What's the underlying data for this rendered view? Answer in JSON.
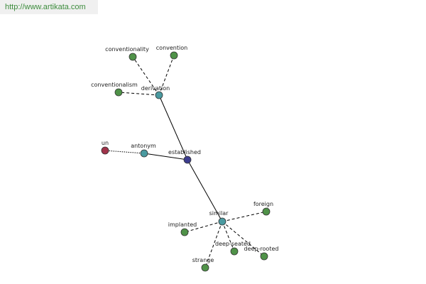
{
  "header": {
    "url": "http://www.artikata.com"
  },
  "nodes": [
    {
      "label": "established"
    },
    {
      "label": "derivation"
    },
    {
      "label": "antonym"
    },
    {
      "label": "similar"
    },
    {
      "label": "un"
    },
    {
      "label": "conventionality"
    },
    {
      "label": "convention"
    },
    {
      "label": "conventionalism"
    },
    {
      "label": "foreign"
    },
    {
      "label": "implanted"
    },
    {
      "label": "strange"
    },
    {
      "label": "deep-seated"
    },
    {
      "label": "deep-rooted"
    }
  ]
}
